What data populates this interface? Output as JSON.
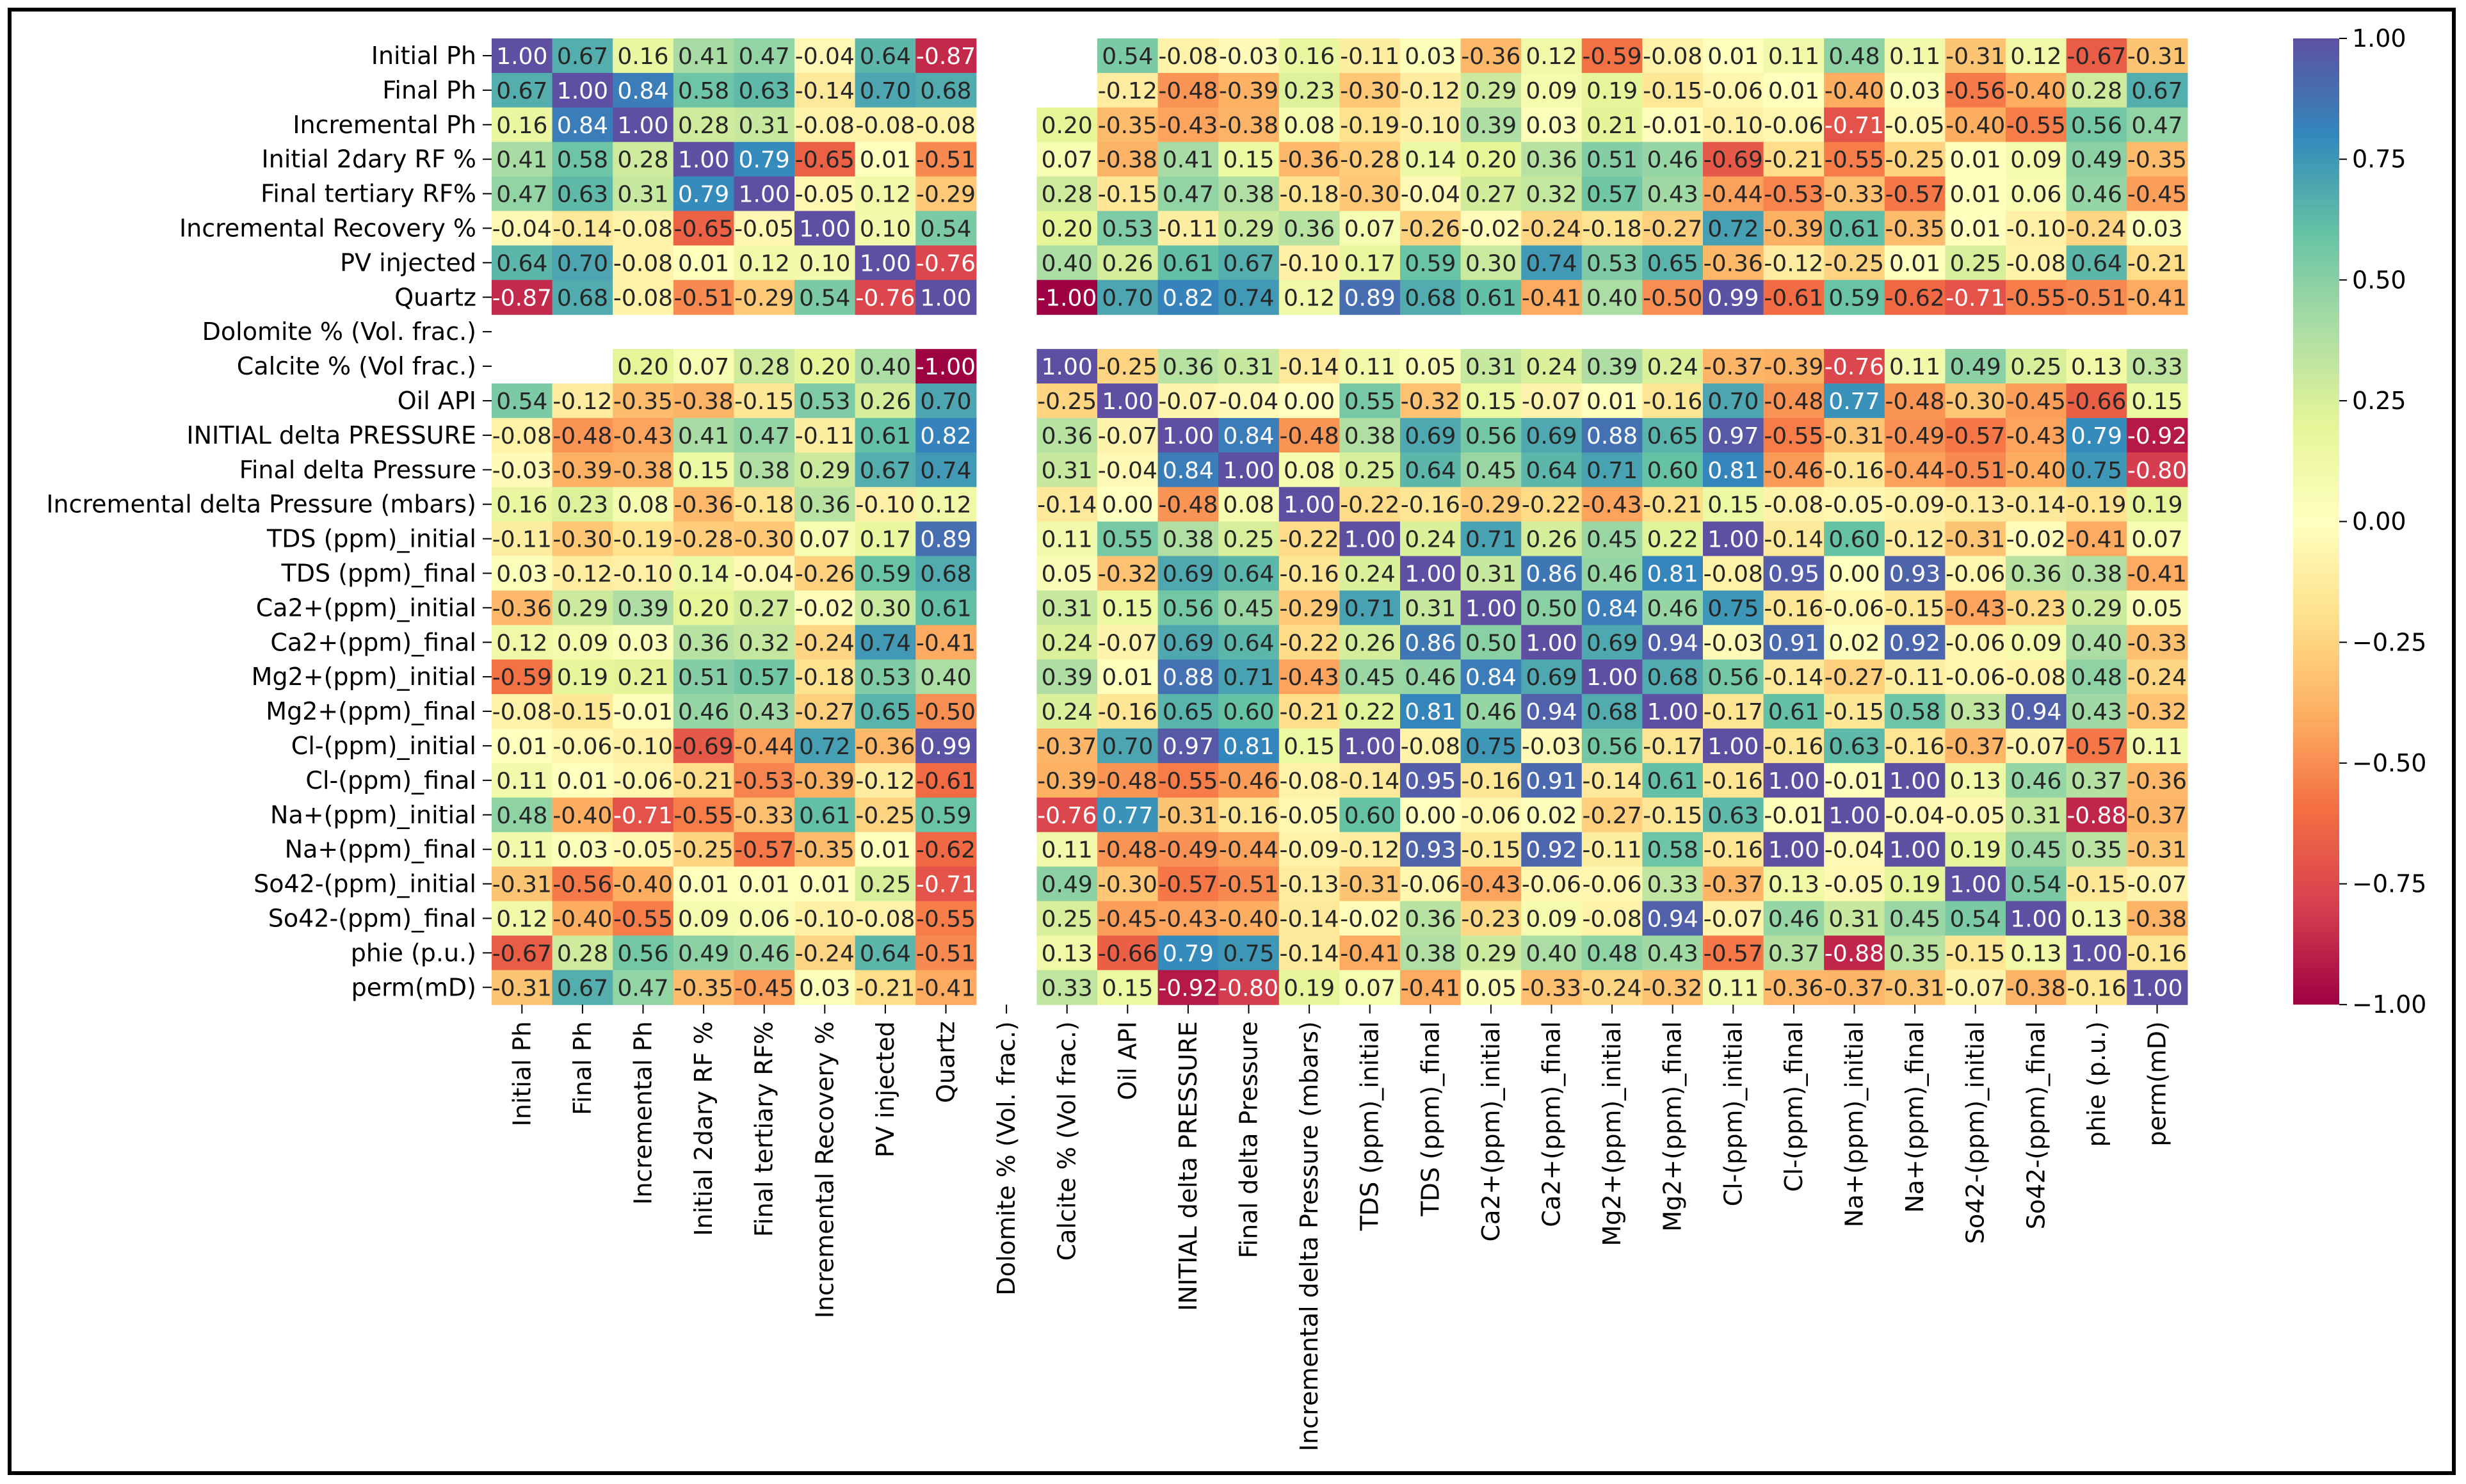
{
  "chart_data": {
    "type": "heatmap",
    "title": "",
    "xlabel": "",
    "ylabel": "",
    "colormap": "Spectral",
    "vmin": -1.0,
    "vmax": 1.0,
    "colorbar_ticks": [
      1.0,
      0.75,
      0.5,
      0.25,
      0.0,
      -0.25,
      -0.5,
      -0.75,
      -1.0
    ],
    "colorbar_tick_labels": [
      "1.00",
      "0.75",
      "0.50",
      "0.25",
      "0.00",
      "−0.25",
      "−0.50",
      "−0.75",
      "−1.00"
    ],
    "labels": [
      "Initial Ph",
      "Final Ph",
      "Incremental Ph",
      "Initial 2dary RF %",
      "Final tertiary RF%",
      "Incremental Recovery %",
      "PV injected",
      "Quartz",
      "Dolomite % (Vol. frac.)",
      "Calcite % (Vol frac.)",
      "Oil API",
      "INITIAL delta PRESSURE",
      "Final delta Pressure",
      "Incremental delta Pressure (mbars)",
      "TDS (ppm)_initial",
      "TDS (ppm)_final",
      "Ca2+(ppm)_initial",
      "Ca2+(ppm)_final",
      "Mg2+(ppm)_initial",
      "Mg2+(ppm)_final",
      "Cl-(ppm)_initial",
      "Cl-(ppm)_final",
      "Na+(ppm)_initial",
      "Na+(ppm)_final",
      "So42-(ppm)_initial",
      "So42-(ppm)_final",
      "phie (p.u.)",
      "perm(mD)"
    ],
    "values": [
      [
        1.0,
        0.67,
        0.16,
        0.41,
        0.47,
        -0.04,
        0.64,
        -0.87,
        null,
        null,
        0.54,
        -0.08,
        -0.03,
        0.16,
        -0.11,
        0.03,
        -0.36,
        0.12,
        -0.59,
        -0.08,
        0.01,
        0.11,
        0.48,
        0.11,
        -0.31,
        0.12,
        -0.67,
        -0.31
      ],
      [
        0.67,
        1.0,
        0.84,
        0.58,
        0.63,
        -0.14,
        0.7,
        0.68,
        null,
        null,
        -0.12,
        -0.48,
        -0.39,
        0.23,
        -0.3,
        -0.12,
        0.29,
        0.09,
        0.19,
        -0.15,
        -0.06,
        0.01,
        -0.4,
        0.03,
        -0.56,
        -0.4,
        0.28,
        0.67
      ],
      [
        0.16,
        0.84,
        1.0,
        0.28,
        0.31,
        -0.08,
        -0.08,
        -0.08,
        null,
        0.2,
        -0.35,
        -0.43,
        -0.38,
        0.08,
        -0.19,
        -0.1,
        0.39,
        0.03,
        0.21,
        -0.01,
        -0.1,
        -0.06,
        -0.71,
        -0.05,
        -0.4,
        -0.55,
        0.56,
        0.47
      ],
      [
        0.41,
        0.58,
        0.28,
        1.0,
        0.79,
        -0.65,
        0.01,
        -0.51,
        null,
        0.07,
        -0.38,
        0.41,
        0.15,
        -0.36,
        -0.28,
        0.14,
        0.2,
        0.36,
        0.51,
        0.46,
        -0.69,
        -0.21,
        -0.55,
        -0.25,
        0.01,
        0.09,
        0.49,
        -0.35
      ],
      [
        0.47,
        0.63,
        0.31,
        0.79,
        1.0,
        -0.05,
        0.12,
        -0.29,
        null,
        0.28,
        -0.15,
        0.47,
        0.38,
        -0.18,
        -0.3,
        -0.04,
        0.27,
        0.32,
        0.57,
        0.43,
        -0.44,
        -0.53,
        -0.33,
        -0.57,
        0.01,
        0.06,
        0.46,
        -0.45
      ],
      [
        -0.04,
        -0.14,
        -0.08,
        -0.65,
        -0.05,
        1.0,
        0.1,
        0.54,
        null,
        0.2,
        0.53,
        -0.11,
        0.29,
        0.36,
        0.07,
        -0.26,
        -0.02,
        -0.24,
        -0.18,
        -0.27,
        0.72,
        -0.39,
        0.61,
        -0.35,
        0.01,
        -0.1,
        -0.24,
        0.03
      ],
      [
        0.64,
        0.7,
        -0.08,
        0.01,
        0.12,
        0.1,
        1.0,
        -0.76,
        null,
        0.4,
        0.26,
        0.61,
        0.67,
        -0.1,
        0.17,
        0.59,
        0.3,
        0.74,
        0.53,
        0.65,
        -0.36,
        -0.12,
        -0.25,
        0.01,
        0.25,
        -0.08,
        0.64,
        -0.21
      ],
      [
        -0.87,
        0.68,
        -0.08,
        -0.51,
        -0.29,
        0.54,
        -0.76,
        1.0,
        null,
        -1.0,
        0.7,
        0.82,
        0.74,
        0.12,
        0.89,
        0.68,
        0.61,
        -0.41,
        0.4,
        -0.5,
        0.99,
        -0.61,
        0.59,
        -0.62,
        -0.71,
        -0.55,
        -0.51,
        -0.41
      ],
      [
        null,
        null,
        null,
        null,
        null,
        null,
        null,
        null,
        null,
        null,
        null,
        null,
        null,
        null,
        null,
        null,
        null,
        null,
        null,
        null,
        null,
        null,
        null,
        null,
        null,
        null,
        null,
        null
      ],
      [
        null,
        null,
        0.2,
        0.07,
        0.28,
        0.2,
        0.4,
        -1.0,
        null,
        1.0,
        -0.25,
        0.36,
        0.31,
        -0.14,
        0.11,
        0.05,
        0.31,
        0.24,
        0.39,
        0.24,
        -0.37,
        -0.39,
        -0.76,
        0.11,
        0.49,
        0.25,
        0.13,
        0.33
      ],
      [
        0.54,
        -0.12,
        -0.35,
        -0.38,
        -0.15,
        0.53,
        0.26,
        0.7,
        null,
        -0.25,
        1.0,
        -0.07,
        -0.04,
        0.0,
        0.55,
        -0.32,
        0.15,
        -0.07,
        0.01,
        -0.16,
        0.7,
        -0.48,
        0.77,
        -0.48,
        -0.3,
        -0.45,
        -0.66,
        0.15
      ],
      [
        -0.08,
        -0.48,
        -0.43,
        0.41,
        0.47,
        -0.11,
        0.61,
        0.82,
        null,
        0.36,
        -0.07,
        1.0,
        0.84,
        -0.48,
        0.38,
        0.69,
        0.56,
        0.69,
        0.88,
        0.65,
        0.97,
        -0.55,
        -0.31,
        -0.49,
        -0.57,
        -0.43,
        0.79,
        -0.92
      ],
      [
        -0.03,
        -0.39,
        -0.38,
        0.15,
        0.38,
        0.29,
        0.67,
        0.74,
        null,
        0.31,
        -0.04,
        0.84,
        1.0,
        0.08,
        0.25,
        0.64,
        0.45,
        0.64,
        0.71,
        0.6,
        0.81,
        -0.46,
        -0.16,
        -0.44,
        -0.51,
        -0.4,
        0.75,
        -0.8
      ],
      [
        0.16,
        0.23,
        0.08,
        -0.36,
        -0.18,
        0.36,
        -0.1,
        0.12,
        null,
        -0.14,
        0.0,
        -0.48,
        0.08,
        1.0,
        -0.22,
        -0.16,
        -0.29,
        -0.22,
        -0.43,
        -0.21,
        0.15,
        -0.08,
        -0.05,
        -0.09,
        -0.13,
        -0.14,
        -0.19,
        0.19
      ],
      [
        -0.11,
        -0.3,
        -0.19,
        -0.28,
        -0.3,
        0.07,
        0.17,
        0.89,
        null,
        0.11,
        0.55,
        0.38,
        0.25,
        -0.22,
        1.0,
        0.24,
        0.71,
        0.26,
        0.45,
        0.22,
        1.0,
        -0.14,
        0.6,
        -0.12,
        -0.31,
        -0.02,
        -0.41,
        0.07
      ],
      [
        0.03,
        -0.12,
        -0.1,
        0.14,
        -0.04,
        -0.26,
        0.59,
        0.68,
        null,
        0.05,
        -0.32,
        0.69,
        0.64,
        -0.16,
        0.24,
        1.0,
        0.31,
        0.86,
        0.46,
        0.81,
        -0.08,
        0.95,
        0.0,
        0.93,
        -0.06,
        0.36,
        0.38,
        -0.41
      ],
      [
        -0.36,
        0.29,
        0.39,
        0.2,
        0.27,
        -0.02,
        0.3,
        0.61,
        null,
        0.31,
        0.15,
        0.56,
        0.45,
        -0.29,
        0.71,
        0.31,
        1.0,
        0.5,
        0.84,
        0.46,
        0.75,
        -0.16,
        -0.06,
        -0.15,
        -0.43,
        -0.23,
        0.29,
        0.05
      ],
      [
        0.12,
        0.09,
        0.03,
        0.36,
        0.32,
        -0.24,
        0.74,
        -0.41,
        null,
        0.24,
        -0.07,
        0.69,
        0.64,
        -0.22,
        0.26,
        0.86,
        0.5,
        1.0,
        0.69,
        0.94,
        -0.03,
        0.91,
        0.02,
        0.92,
        -0.06,
        0.09,
        0.4,
        -0.33
      ],
      [
        -0.59,
        0.19,
        0.21,
        0.51,
        0.57,
        -0.18,
        0.53,
        0.4,
        null,
        0.39,
        0.01,
        0.88,
        0.71,
        -0.43,
        0.45,
        0.46,
        0.84,
        0.69,
        1.0,
        0.68,
        0.56,
        -0.14,
        -0.27,
        -0.11,
        -0.06,
        -0.08,
        0.48,
        -0.24
      ],
      [
        -0.08,
        -0.15,
        -0.01,
        0.46,
        0.43,
        -0.27,
        0.65,
        -0.5,
        null,
        0.24,
        -0.16,
        0.65,
        0.6,
        -0.21,
        0.22,
        0.81,
        0.46,
        0.94,
        0.68,
        1.0,
        -0.17,
        0.61,
        -0.15,
        0.58,
        0.33,
        0.94,
        0.43,
        -0.32
      ],
      [
        0.01,
        -0.06,
        -0.1,
        -0.69,
        -0.44,
        0.72,
        -0.36,
        0.99,
        null,
        -0.37,
        0.7,
        0.97,
        0.81,
        0.15,
        1.0,
        -0.08,
        0.75,
        -0.03,
        0.56,
        -0.17,
        1.0,
        -0.16,
        0.63,
        -0.16,
        -0.37,
        -0.07,
        -0.57,
        0.11
      ],
      [
        0.11,
        0.01,
        -0.06,
        -0.21,
        -0.53,
        -0.39,
        -0.12,
        -0.61,
        null,
        -0.39,
        -0.48,
        -0.55,
        -0.46,
        -0.08,
        -0.14,
        0.95,
        -0.16,
        0.91,
        -0.14,
        0.61,
        -0.16,
        1.0,
        -0.01,
        1.0,
        0.13,
        0.46,
        0.37,
        -0.36
      ],
      [
        0.48,
        -0.4,
        -0.71,
        -0.55,
        -0.33,
        0.61,
        -0.25,
        0.59,
        null,
        -0.76,
        0.77,
        -0.31,
        -0.16,
        -0.05,
        0.6,
        0.0,
        -0.06,
        0.02,
        -0.27,
        -0.15,
        0.63,
        -0.01,
        1.0,
        -0.04,
        -0.05,
        0.31,
        -0.88,
        -0.37
      ],
      [
        0.11,
        0.03,
        -0.05,
        -0.25,
        -0.57,
        -0.35,
        0.01,
        -0.62,
        null,
        0.11,
        -0.48,
        -0.49,
        -0.44,
        -0.09,
        -0.12,
        0.93,
        -0.15,
        0.92,
        -0.11,
        0.58,
        -0.16,
        1.0,
        -0.04,
        1.0,
        0.19,
        0.45,
        0.35,
        -0.31
      ],
      [
        -0.31,
        -0.56,
        -0.4,
        0.01,
        0.01,
        0.01,
        0.25,
        -0.71,
        null,
        0.49,
        -0.3,
        -0.57,
        -0.51,
        -0.13,
        -0.31,
        -0.06,
        -0.43,
        -0.06,
        -0.06,
        0.33,
        -0.37,
        0.13,
        -0.05,
        0.19,
        1.0,
        0.54,
        -0.15,
        -0.07
      ],
      [
        0.12,
        -0.4,
        -0.55,
        0.09,
        0.06,
        -0.1,
        -0.08,
        -0.55,
        null,
        0.25,
        -0.45,
        -0.43,
        -0.4,
        -0.14,
        -0.02,
        0.36,
        -0.23,
        0.09,
        -0.08,
        0.94,
        -0.07,
        0.46,
        0.31,
        0.45,
        0.54,
        1.0,
        0.13,
        -0.38
      ],
      [
        -0.67,
        0.28,
        0.56,
        0.49,
        0.46,
        -0.24,
        0.64,
        -0.51,
        null,
        0.13,
        -0.66,
        0.79,
        0.75,
        -0.14,
        -0.41,
        0.38,
        0.29,
        0.4,
        0.48,
        0.43,
        -0.57,
        0.37,
        -0.88,
        0.35,
        -0.15,
        0.13,
        1.0,
        -0.16
      ],
      [
        -0.31,
        0.67,
        0.47,
        -0.35,
        -0.45,
        0.03,
        -0.21,
        -0.41,
        null,
        0.33,
        0.15,
        -0.92,
        -0.8,
        0.19,
        0.07,
        -0.41,
        0.05,
        -0.33,
        -0.24,
        -0.32,
        0.11,
        -0.36,
        -0.37,
        -0.31,
        -0.07,
        -0.38,
        -0.16,
        1.0
      ]
    ]
  }
}
